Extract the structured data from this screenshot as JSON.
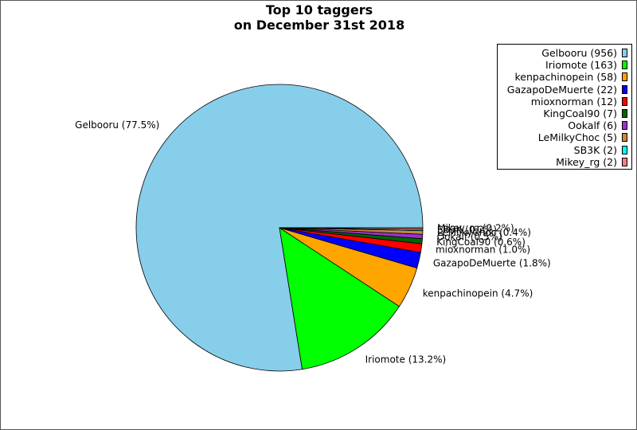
{
  "chart_data": {
    "type": "pie",
    "title": [
      "Top 10 taggers",
      "on December 31st 2018"
    ],
    "legend_position": "top-right",
    "slices": [
      {
        "name": "Gelbooru",
        "value": 956,
        "legend": "Gelbooru (956)",
        "label": "Gelbooru (77.5%)",
        "color": "#87ceeb"
      },
      {
        "name": "Iriomote",
        "value": 163,
        "legend": "Iriomote (163)",
        "label": "Iriomote (13.2%)",
        "color": "#00ff00"
      },
      {
        "name": "kenpachinopein",
        "value": 58,
        "legend": "kenpachinopein (58)",
        "label": "kenpachinopein (4.7%)",
        "color": "#ffa500"
      },
      {
        "name": "GazapoDeMuerte",
        "value": 22,
        "legend": "GazapoDeMuerte (22)",
        "label": "GazapoDeMuerte (1.8%)",
        "color": "#0000ff"
      },
      {
        "name": "mioxnorman",
        "value": 12,
        "legend": "mioxnorman (12)",
        "label": "mioxnorman (1.0%)",
        "color": "#ff0000"
      },
      {
        "name": "KingCoal90",
        "value": 7,
        "legend": "KingCoal90 (7)",
        "label": "KingCoal90 (0.6%)",
        "color": "#006400"
      },
      {
        "name": "Ookalf",
        "value": 6,
        "legend": "Ookalf (6)",
        "label": "Ookalf (0.5%)",
        "color": "#9932cc"
      },
      {
        "name": "LeMilkyChoc",
        "value": 5,
        "legend": "LeMilkyChoc (5)",
        "label": "LeMilkyChoc (0.4%)",
        "color": "#cd853f"
      },
      {
        "name": "SB3K",
        "value": 2,
        "legend": "SB3K (2)",
        "label": "SB3K (0.2%)",
        "color": "#00ffff"
      },
      {
        "name": "Mikey_rg",
        "value": 2,
        "legend": "Mikey_rg (2)",
        "label": "Mikey_rg (0.2%)",
        "color": "#f08080"
      }
    ]
  }
}
